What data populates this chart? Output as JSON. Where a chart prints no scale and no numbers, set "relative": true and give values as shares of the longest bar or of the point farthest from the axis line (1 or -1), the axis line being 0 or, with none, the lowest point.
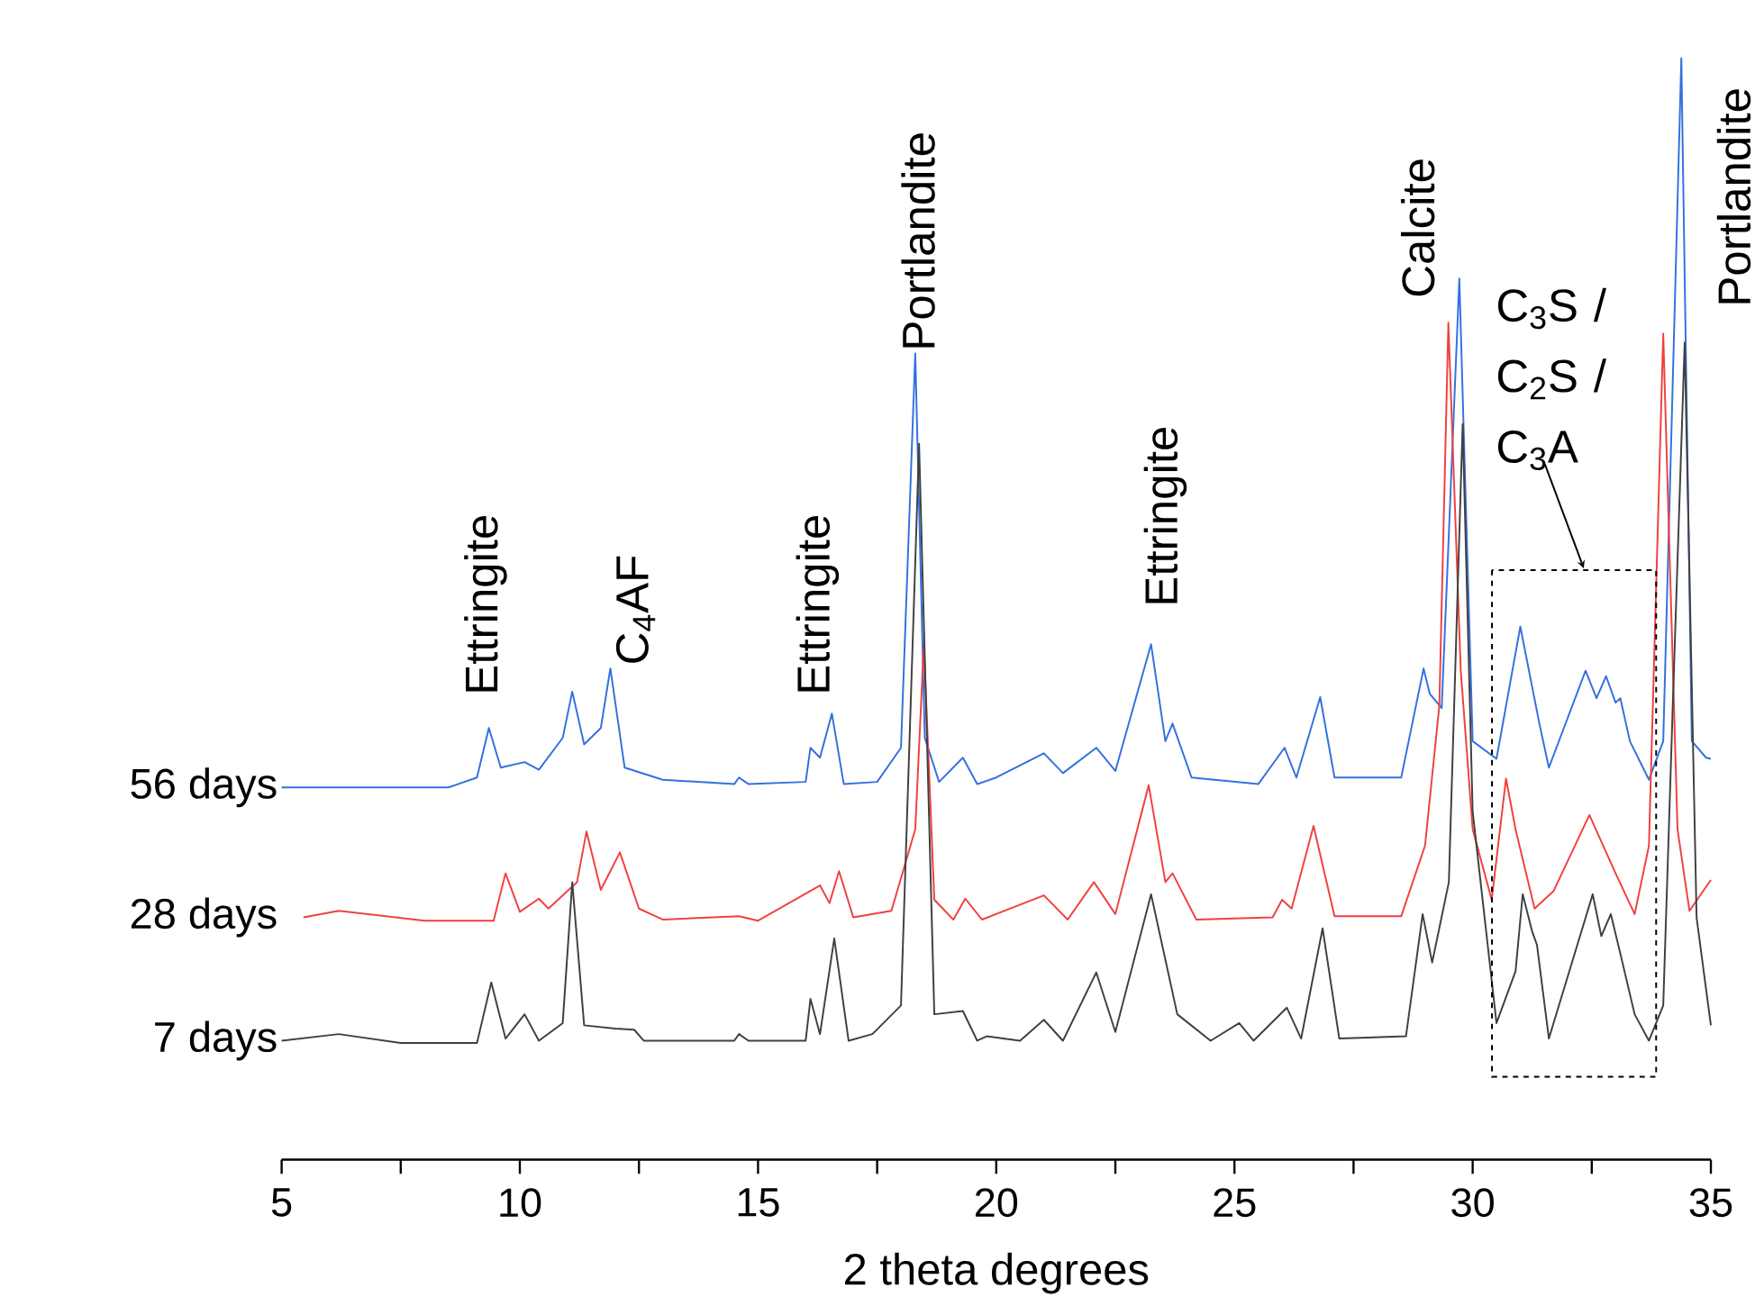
{
  "chart_data": {
    "type": "line",
    "relative": true,
    "xlabel": "2 theta degrees",
    "xlim": [
      5,
      35
    ],
    "xticks": [
      5,
      {
        "value": 7.5,
        "label": null
      },
      10,
      {
        "value": 12.5,
        "label": null
      },
      15,
      {
        "value": 17.5,
        "label": null
      },
      20,
      {
        "value": 22.5,
        "label": null
      },
      25,
      {
        "value": 27.5,
        "label": null
      },
      30,
      {
        "value": 32.5,
        "label": null
      },
      35
    ],
    "series": [
      {
        "name": "56 days",
        "color": "#3370e0",
        "x": [
          5,
          8.5,
          9.1,
          9.35,
          9.6,
          10.1,
          10.4,
          10.9,
          11.1,
          11.35,
          11.7,
          11.9,
          12.2,
          13,
          14.5,
          14.6,
          14.8,
          16.0,
          16.1,
          16.3,
          16.55,
          16.8,
          17.5,
          18.0,
          18.3,
          18.5,
          18.8,
          19.3,
          19.6,
          20.0,
          21.0,
          21.4,
          22.1,
          22.5,
          23.25,
          23.55,
          23.7,
          24.1,
          25.5,
          26.05,
          26.3,
          26.8,
          27.1,
          28.5,
          28.97,
          29.1,
          29.35,
          29.72,
          30.0,
          30.5,
          31.0,
          31.4,
          31.6,
          32.37,
          32.6,
          32.8,
          33.0,
          33.1,
          33.3,
          33.7,
          34.0,
          34.38,
          34.6,
          34.9,
          35
        ],
        "values": [
          0.338,
          0.338,
          0.347,
          0.392,
          0.356,
          0.361,
          0.354,
          0.383,
          0.425,
          0.377,
          0.392,
          0.446,
          0.356,
          0.345,
          0.341,
          0.347,
          0.341,
          0.343,
          0.374,
          0.365,
          0.405,
          0.341,
          0.343,
          0.374,
          0.732,
          0.383,
          0.343,
          0.365,
          0.341,
          0.347,
          0.369,
          0.351,
          0.374,
          0.353,
          0.468,
          0.38,
          0.396,
          0.347,
          0.341,
          0.374,
          0.347,
          0.42,
          0.347,
          0.347,
          0.446,
          0.423,
          0.41,
          0.8,
          0.38,
          0.364,
          0.484,
          0.396,
          0.356,
          0.444,
          0.419,
          0.439,
          0.415,
          0.419,
          0.38,
          0.345,
          0.38,
          1.0,
          0.38,
          0.365,
          0.364
        ]
      },
      {
        "name": "28 days",
        "color": "#f04040",
        "x": [
          5.46,
          6.2,
          8.0,
          9.45,
          9.7,
          10.0,
          10.4,
          10.6,
          11.2,
          11.4,
          11.7,
          12.1,
          12.5,
          13,
          14.6,
          15,
          16.3,
          16.5,
          16.7,
          17.0,
          17.8,
          18.3,
          18.48,
          18.7,
          19.1,
          19.35,
          19.7,
          21.0,
          21.5,
          22.05,
          22.5,
          23.2,
          23.55,
          23.7,
          24.2,
          25.8,
          26.0,
          26.2,
          26.66,
          27.1,
          28.5,
          29.0,
          29.3,
          29.49,
          29.75,
          30.0,
          30.4,
          30.7,
          30.9,
          31.3,
          31.7,
          32.45,
          33.0,
          33.4,
          33.7,
          34.0,
          34.3,
          34.55,
          35
        ],
        "values": [
          0.22,
          0.226,
          0.217,
          0.217,
          0.26,
          0.225,
          0.237,
          0.228,
          0.252,
          0.298,
          0.245,
          0.279,
          0.228,
          0.218,
          0.221,
          0.217,
          0.249,
          0.233,
          0.262,
          0.22,
          0.226,
          0.3,
          0.468,
          0.236,
          0.218,
          0.237,
          0.218,
          0.24,
          0.218,
          0.252,
          0.223,
          0.34,
          0.252,
          0.26,
          0.218,
          0.22,
          0.236,
          0.228,
          0.303,
          0.221,
          0.221,
          0.285,
          0.412,
          0.76,
          0.444,
          0.3,
          0.236,
          0.346,
          0.3,
          0.228,
          0.244,
          0.313,
          0.26,
          0.223,
          0.285,
          0.75,
          0.3,
          0.226,
          0.254
        ]
      },
      {
        "name": "7 days",
        "color": "#404040",
        "x": [
          5,
          6.2,
          7.5,
          9.1,
          9.4,
          9.7,
          10.1,
          10.4,
          10.9,
          11.1,
          11.35,
          12.0,
          12.4,
          12.6,
          14.5,
          14.6,
          14.8,
          16.0,
          16.1,
          16.3,
          16.6,
          16.9,
          17.4,
          18.0,
          18.38,
          18.7,
          19.3,
          19.6,
          19.8,
          20.5,
          21.0,
          21.4,
          22.1,
          22.5,
          23.25,
          23.8,
          24.5,
          25.1,
          25.4,
          26.1,
          26.4,
          26.85,
          27.2,
          28.6,
          28.95,
          29.15,
          29.5,
          29.79,
          30.0,
          30.5,
          30.9,
          31.05,
          31.25,
          31.35,
          31.6,
          32.52,
          32.7,
          32.9,
          33.1,
          33.4,
          33.7,
          34.0,
          34.2,
          34.45,
          34.7,
          35
        ],
        "values": [
          0.108,
          0.114,
          0.106,
          0.106,
          0.161,
          0.11,
          0.132,
          0.108,
          0.124,
          0.252,
          0.122,
          0.119,
          0.118,
          0.108,
          0.108,
          0.114,
          0.108,
          0.108,
          0.146,
          0.114,
          0.201,
          0.108,
          0.114,
          0.14,
          0.65,
          0.132,
          0.135,
          0.108,
          0.112,
          0.108,
          0.127,
          0.108,
          0.17,
          0.116,
          0.241,
          0.132,
          0.108,
          0.124,
          0.108,
          0.138,
          0.11,
          0.21,
          0.11,
          0.112,
          0.223,
          0.179,
          0.252,
          0.668,
          0.316,
          0.124,
          0.171,
          0.241,
          0.207,
          0.195,
          0.11,
          0.241,
          0.203,
          0.223,
          0.187,
          0.132,
          0.108,
          0.14,
          0.412,
          0.742,
          0.22,
          0.122
        ]
      }
    ],
    "annotations": [
      "Ettringite",
      "C$_{4}$AF",
      "Ettringite",
      "Portlandite",
      "Ettringite",
      "Calcite",
      "C$_{3}$S / C$_{2}$S / C$_{3}$A",
      "Portlandite"
    ]
  }
}
